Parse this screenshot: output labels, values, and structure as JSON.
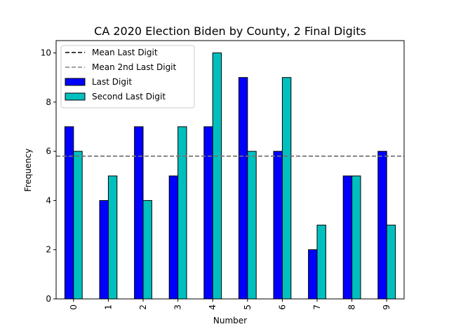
{
  "chart_data": {
    "type": "bar",
    "title": "CA 2020 Election Biden by County, 2 Final Digits",
    "xlabel": "Number",
    "ylabel": "Frequency",
    "categories": [
      "0",
      "1",
      "2",
      "3",
      "4",
      "5",
      "6",
      "7",
      "8",
      "9"
    ],
    "series": [
      {
        "name": "Last Digit",
        "color": "#0000ff",
        "values": [
          7,
          4,
          7,
          5,
          7,
          9,
          6,
          2,
          5,
          6
        ]
      },
      {
        "name": "Second Last Digit",
        "color": "#00bfbf",
        "values": [
          6,
          5,
          4,
          7,
          10,
          6,
          9,
          3,
          5,
          3
        ]
      }
    ],
    "reference_lines": [
      {
        "name": "Mean Last Digit",
        "value": 5.8,
        "color": "#000000",
        "style": "dashed"
      },
      {
        "name": "Mean 2nd Last Digit",
        "value": 5.8,
        "color": "#808080",
        "style": "dashed"
      }
    ],
    "ylim": [
      0,
      10.5
    ],
    "yticks": [
      "0",
      "2",
      "4",
      "6",
      "8",
      "10"
    ],
    "grid": false,
    "legend_position": "top-left"
  }
}
